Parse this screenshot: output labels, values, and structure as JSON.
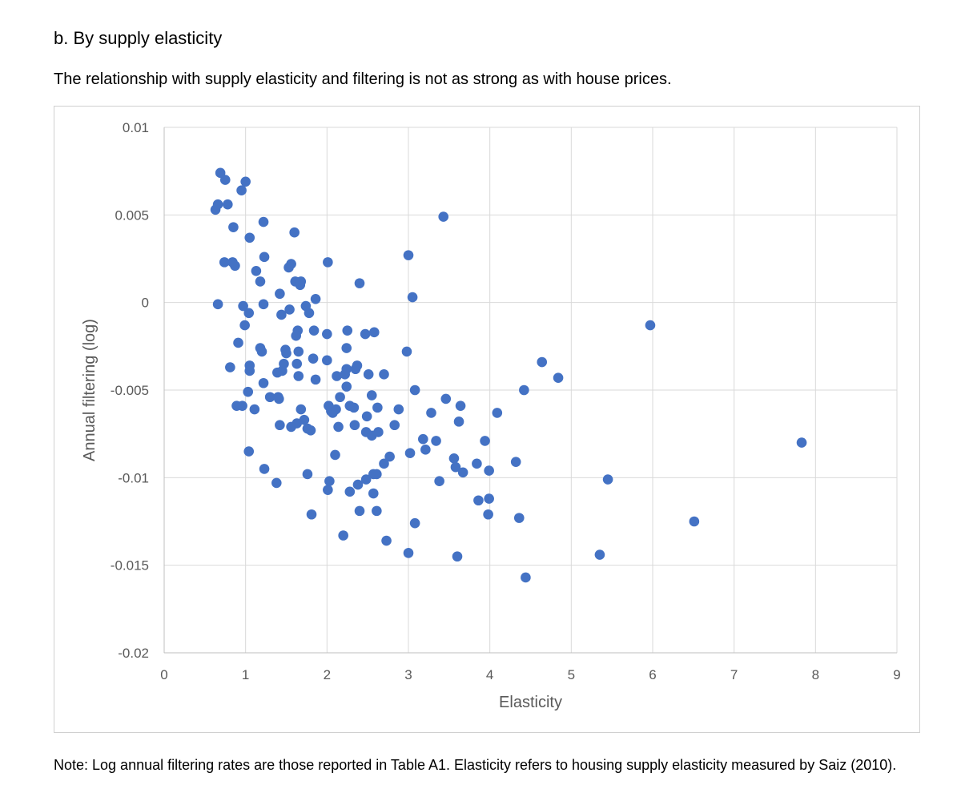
{
  "heading": "b. By supply elasticity",
  "caption": "The relationship with supply elasticity and filtering is not as strong as with house prices.",
  "note": "Note: Log annual filtering rates are those reported in Table A1. Elasticity refers to housing supply elasticity measured by Saiz (2010).",
  "chart_data": {
    "type": "scatter",
    "title": "",
    "xlabel": "Elasticity",
    "ylabel": "Annual filtering (log)",
    "xlim": [
      0,
      9
    ],
    "ylim": [
      -0.02,
      0.01
    ],
    "x_ticks": [
      0,
      1,
      2,
      3,
      4,
      5,
      6,
      7,
      8,
      9
    ],
    "x_tick_labels": [
      "0",
      "1",
      "2",
      "3",
      "4",
      "5",
      "6",
      "7",
      "8",
      "9"
    ],
    "y_ticks": [
      0.01,
      0.005,
      0,
      -0.005,
      -0.01,
      -0.015,
      -0.02
    ],
    "y_tick_labels": [
      "0.01",
      "0.005",
      "0",
      "-0.005",
      "-0.01",
      "-0.015",
      "-0.02"
    ],
    "grid": true,
    "legend": "none",
    "marker_color": "#4472C4",
    "points": [
      [
        0.69,
        0.0074
      ],
      [
        0.75,
        0.007
      ],
      [
        1.0,
        0.0069
      ],
      [
        0.95,
        0.0064
      ],
      [
        0.66,
        0.0056
      ],
      [
        0.78,
        0.0056
      ],
      [
        0.63,
        0.0053
      ],
      [
        1.22,
        0.0046
      ],
      [
        0.85,
        0.0043
      ],
      [
        1.05,
        0.0037
      ],
      [
        1.6,
        0.004
      ],
      [
        3.43,
        0.0049
      ],
      [
        0.74,
        0.0023
      ],
      [
        0.84,
        0.0023
      ],
      [
        0.87,
        0.0021
      ],
      [
        1.23,
        0.0026
      ],
      [
        1.13,
        0.0018
      ],
      [
        1.18,
        0.0012
      ],
      [
        1.53,
        0.002
      ],
      [
        1.56,
        0.0022
      ],
      [
        1.61,
        0.0012
      ],
      [
        1.67,
        0.001
      ],
      [
        1.68,
        0.0012
      ],
      [
        2.01,
        0.0023
      ],
      [
        2.4,
        0.0011
      ],
      [
        3.0,
        0.0027
      ],
      [
        3.05,
        0.0003
      ],
      [
        1.42,
        0.0005
      ],
      [
        1.86,
        0.0002
      ],
      [
        0.66,
        -0.0001
      ],
      [
        0.97,
        -0.0002
      ],
      [
        1.04,
        -0.0006
      ],
      [
        1.22,
        -0.0001
      ],
      [
        1.44,
        -0.0007
      ],
      [
        1.54,
        -0.0004
      ],
      [
        1.74,
        -0.0002
      ],
      [
        1.78,
        -0.0006
      ],
      [
        0.99,
        -0.0013
      ],
      [
        1.64,
        -0.0016
      ],
      [
        1.62,
        -0.0019
      ],
      [
        1.84,
        -0.0016
      ],
      [
        2.0,
        -0.0018
      ],
      [
        2.25,
        -0.0016
      ],
      [
        2.47,
        -0.0018
      ],
      [
        2.58,
        -0.0017
      ],
      [
        5.97,
        -0.0013
      ],
      [
        0.91,
        -0.0023
      ],
      [
        1.18,
        -0.0026
      ],
      [
        1.2,
        -0.0028
      ],
      [
        1.49,
        -0.0027
      ],
      [
        1.5,
        -0.0029
      ],
      [
        1.65,
        -0.0028
      ],
      [
        2.24,
        -0.0026
      ],
      [
        2.98,
        -0.0028
      ],
      [
        0.81,
        -0.0037
      ],
      [
        1.05,
        -0.0036
      ],
      [
        1.05,
        -0.0039
      ],
      [
        1.39,
        -0.004
      ],
      [
        1.45,
        -0.0039
      ],
      [
        1.47,
        -0.0035
      ],
      [
        1.63,
        -0.0035
      ],
      [
        1.65,
        -0.0042
      ],
      [
        1.83,
        -0.0032
      ],
      [
        2.0,
        -0.0033
      ],
      [
        2.12,
        -0.0042
      ],
      [
        2.22,
        -0.0041
      ],
      [
        2.24,
        -0.0038
      ],
      [
        2.35,
        -0.0038
      ],
      [
        2.37,
        -0.0036
      ],
      [
        2.51,
        -0.0041
      ],
      [
        2.7,
        -0.0041
      ],
      [
        1.86,
        -0.0044
      ],
      [
        1.22,
        -0.0046
      ],
      [
        2.24,
        -0.0048
      ],
      [
        4.64,
        -0.0034
      ],
      [
        4.84,
        -0.0043
      ],
      [
        1.03,
        -0.0051
      ],
      [
        1.3,
        -0.0054
      ],
      [
        1.4,
        -0.0054
      ],
      [
        1.41,
        -0.0055
      ],
      [
        2.16,
        -0.0054
      ],
      [
        2.55,
        -0.0053
      ],
      [
        3.08,
        -0.005
      ],
      [
        3.46,
        -0.0055
      ],
      [
        4.42,
        -0.005
      ],
      [
        0.89,
        -0.0059
      ],
      [
        0.96,
        -0.0059
      ],
      [
        1.11,
        -0.0061
      ],
      [
        1.68,
        -0.0061
      ],
      [
        2.02,
        -0.0059
      ],
      [
        2.05,
        -0.0062
      ],
      [
        2.07,
        -0.0063
      ],
      [
        2.11,
        -0.0061
      ],
      [
        2.28,
        -0.0059
      ],
      [
        2.33,
        -0.006
      ],
      [
        2.49,
        -0.0065
      ],
      [
        2.62,
        -0.006
      ],
      [
        2.88,
        -0.0061
      ],
      [
        3.28,
        -0.0063
      ],
      [
        3.64,
        -0.0059
      ],
      [
        4.09,
        -0.0063
      ],
      [
        1.42,
        -0.007
      ],
      [
        1.56,
        -0.0071
      ],
      [
        1.63,
        -0.0069
      ],
      [
        1.72,
        -0.0067
      ],
      [
        1.76,
        -0.0072
      ],
      [
        1.8,
        -0.0073
      ],
      [
        2.14,
        -0.0071
      ],
      [
        2.34,
        -0.007
      ],
      [
        2.48,
        -0.0074
      ],
      [
        2.55,
        -0.0076
      ],
      [
        2.63,
        -0.0074
      ],
      [
        2.83,
        -0.007
      ],
      [
        3.62,
        -0.0068
      ],
      [
        3.18,
        -0.0078
      ],
      [
        3.34,
        -0.0079
      ],
      [
        3.94,
        -0.0079
      ],
      [
        1.04,
        -0.0085
      ],
      [
        2.1,
        -0.0087
      ],
      [
        3.02,
        -0.0086
      ],
      [
        3.21,
        -0.0084
      ],
      [
        2.77,
        -0.0088
      ],
      [
        2.7,
        -0.0092
      ],
      [
        3.56,
        -0.0089
      ],
      [
        4.32,
        -0.0091
      ],
      [
        7.83,
        -0.008
      ],
      [
        1.23,
        -0.0095
      ],
      [
        1.76,
        -0.0098
      ],
      [
        2.03,
        -0.0102
      ],
      [
        2.01,
        -0.0107
      ],
      [
        2.28,
        -0.0108
      ],
      [
        2.38,
        -0.0104
      ],
      [
        2.48,
        -0.0101
      ],
      [
        2.57,
        -0.0098
      ],
      [
        2.61,
        -0.0098
      ],
      [
        2.57,
        -0.0109
      ],
      [
        1.38,
        -0.0103
      ],
      [
        3.38,
        -0.0102
      ],
      [
        3.58,
        -0.0094
      ],
      [
        3.67,
        -0.0097
      ],
      [
        3.84,
        -0.0092
      ],
      [
        3.99,
        -0.0096
      ],
      [
        5.45,
        -0.0101
      ],
      [
        3.86,
        -0.0113
      ],
      [
        3.99,
        -0.0112
      ],
      [
        1.81,
        -0.0121
      ],
      [
        2.4,
        -0.0119
      ],
      [
        2.61,
        -0.0119
      ],
      [
        3.98,
        -0.0121
      ],
      [
        3.08,
        -0.0126
      ],
      [
        4.36,
        -0.0123
      ],
      [
        6.51,
        -0.0125
      ],
      [
        2.2,
        -0.0133
      ],
      [
        2.73,
        -0.0136
      ],
      [
        3.0,
        -0.0143
      ],
      [
        3.6,
        -0.0145
      ],
      [
        5.35,
        -0.0144
      ],
      [
        4.44,
        -0.0157
      ]
    ]
  }
}
